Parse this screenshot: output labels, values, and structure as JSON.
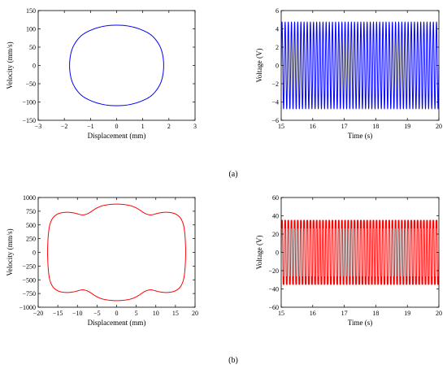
{
  "figure": {
    "panel_labels": [
      "(a)",
      "(b)"
    ]
  },
  "colors": {
    "series_a": "#0000ff",
    "series_b": "#ff0000",
    "axes": "#000000"
  },
  "chart_data": [
    {
      "id": "a-phase",
      "type": "line",
      "title": "",
      "xlabel": "Displacement (mm)",
      "ylabel": "Velocity (mm/s)",
      "xlim": [
        -3,
        3
      ],
      "ylim": [
        -150,
        150
      ],
      "xticks": [
        -3,
        -2,
        -1,
        0,
        1,
        2,
        3
      ],
      "yticks": [
        -150,
        -100,
        -50,
        0,
        50,
        100,
        150
      ],
      "grid": false,
      "color": "#0000ff",
      "series": [
        {
          "x": [
            0,
            0.5,
            1.0,
            1.4,
            1.7,
            1.8,
            1.7,
            1.4,
            1.0,
            0.5,
            0,
            -0.5,
            -1.0,
            -1.4,
            -1.7,
            -1.8,
            -1.7,
            -1.4,
            -1.0,
            -0.5,
            0
          ],
          "y": [
            110,
            107,
            96,
            78,
            45,
            0,
            -45,
            -78,
            -96,
            -107,
            -110,
            -107,
            -96,
            -78,
            -45,
            0,
            45,
            78,
            96,
            107,
            110
          ]
        }
      ]
    },
    {
      "id": "a-voltage",
      "type": "line",
      "title": "",
      "xlabel": "Time (s)",
      "ylabel": "Voltage (V)",
      "xlim": [
        15,
        20
      ],
      "ylim": [
        -6,
        6
      ],
      "xticks": [
        15,
        16,
        17,
        18,
        19,
        20
      ],
      "yticks": [
        -6,
        -4,
        -2,
        0,
        2,
        4,
        6
      ],
      "grid": false,
      "color": "#0000ff",
      "series": [
        {
          "amplitude": 4.75,
          "frequency_hz": 10,
          "t_start": 15,
          "t_end": 20
        }
      ]
    },
    {
      "id": "b-phase",
      "type": "line",
      "title": "",
      "xlabel": "Displacement (mm)",
      "ylabel": "Velocity (mm/s)",
      "xlim": [
        -20,
        20
      ],
      "ylim": [
        -1000,
        1000
      ],
      "xticks": [
        -20,
        -15,
        -10,
        -5,
        0,
        5,
        10,
        15,
        20
      ],
      "yticks": [
        -1000,
        -750,
        -500,
        -250,
        0,
        250,
        500,
        750,
        1000
      ],
      "grid": false,
      "color": "#ff0000",
      "series": [
        {
          "x": [
            0,
            3,
            5,
            7,
            8,
            9,
            11,
            13,
            15,
            16.5,
            17.3,
            17.6,
            17.3,
            16.5,
            15,
            13,
            11,
            9,
            8,
            7,
            5,
            3,
            0,
            -3,
            -5,
            -7,
            -8,
            -9,
            -11,
            -13,
            -15,
            -16.5,
            -17.3,
            -17.6,
            -17.3,
            -16.5,
            -15,
            -13,
            -11,
            -9,
            -8,
            -7,
            -5,
            -3,
            0
          ],
          "y": [
            880,
            860,
            810,
            720,
            690,
            685,
            720,
            730,
            700,
            600,
            400,
            0,
            -400,
            -600,
            -700,
            -730,
            -720,
            -685,
            -690,
            -720,
            -810,
            -860,
            -880,
            -860,
            -810,
            -720,
            -690,
            -685,
            -720,
            -730,
            -700,
            -600,
            -400,
            0,
            400,
            600,
            700,
            730,
            720,
            685,
            690,
            720,
            810,
            860,
            880
          ]
        }
      ]
    },
    {
      "id": "b-voltage",
      "type": "line",
      "title": "",
      "xlabel": "Time (s)",
      "ylabel": "Voltage (V)",
      "xlim": [
        15,
        20
      ],
      "ylim": [
        -60,
        60
      ],
      "xticks": [
        15,
        16,
        17,
        18,
        19,
        20
      ],
      "yticks": [
        -60,
        -40,
        -20,
        0,
        20,
        40,
        60
      ],
      "grid": false,
      "color": "#ff0000",
      "series": [
        {
          "amplitude": 45,
          "frequency_hz": 10,
          "t_start": 15,
          "t_end": 20,
          "harmonic3": 0.3
        }
      ]
    }
  ]
}
